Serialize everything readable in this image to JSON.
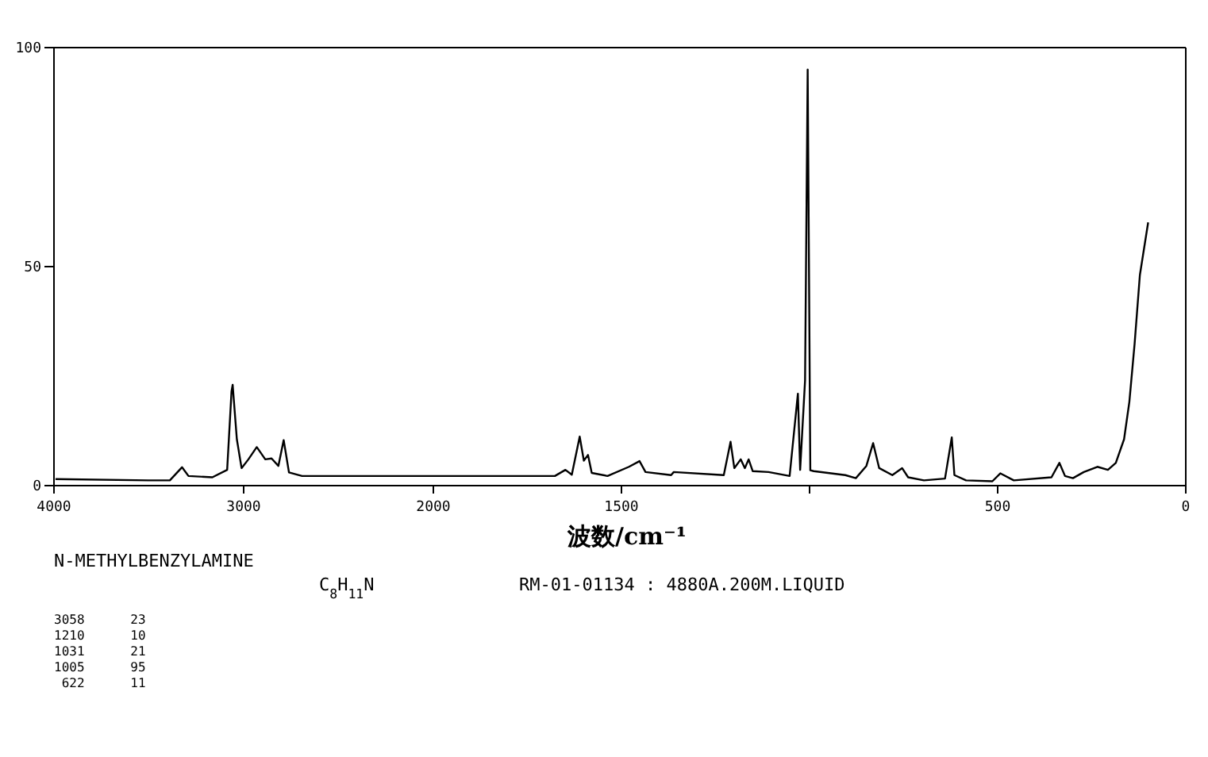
{
  "chart_data": [
    {
      "type": "line",
      "title": "N-METHYLBENZYLAMINE",
      "annotations": [
        "C$_{8}$H$_{11}$N",
        "RM-01-01134 : 4880A.200M.LIQUID",
        "3058      23",
        "1210      10",
        "1031      21",
        "1005      95",
        " 622      11"
      ],
      "xlim": [
        4000,
        2000
      ],
      "xticks": [
        4000,
        3000,
        2000
      ],
      "ylim": [
        0,
        100
      ],
      "yticks": [
        0,
        50,
        100
      ],
      "series": [
        {
          "color": "#000000",
          "x": [
            3992,
            3502,
            3389,
            3325,
            3291,
            3165,
            3087,
            3064,
            3058,
            3036,
            3011,
            2975,
            2931,
            2886,
            2853,
            2817,
            2789,
            2761,
            2692,
            2000
          ],
          "values": [
            1.5,
            1.2,
            1.2,
            4.2,
            2.2,
            1.9,
            3.6,
            21.5,
            23,
            10.6,
            4.0,
            6.0,
            8.8,
            6.0,
            6.2,
            4.5,
            10.4,
            3.0,
            2.2,
            2.2
          ]
        }
      ]
    },
    {
      "type": "line",
      "xlabel": "波数/cm⁻¹",
      "xlim": [
        2000,
        0
      ],
      "xticks": [
        {
          "value": 2000,
          "label": null
        },
        1500,
        {
          "value": 1000,
          "label": null
        },
        500,
        0
      ],
      "ylim": [
        0,
        100
      ],
      "tick_labels": "x",
      "series": [
        {
          "color": "#000000",
          "x": [
            2000,
            1677,
            1649,
            1632,
            1611,
            1600,
            1589,
            1579,
            1537,
            1480,
            1452,
            1436,
            1368,
            1361,
            1228,
            1210,
            1200,
            1183,
            1172,
            1162,
            1151,
            1109,
            1053,
            1031,
            1025,
            1012,
            1005,
            998,
            989,
            905,
            877,
            849,
            831,
            815,
            780,
            754,
            738,
            696,
            640,
            622,
            615,
            584,
            514,
            493,
            457,
            357,
            336,
            321,
            300,
            271,
            235,
            207,
            186,
            164,
            150,
            136,
            122,
            100
          ],
          "values": [
            2.2,
            2.2,
            3.6,
            2.5,
            11.2,
            5.7,
            7.0,
            2.9,
            2.2,
            4.3,
            5.6,
            3.1,
            2.4,
            3.1,
            2.4,
            10,
            4.0,
            6.0,
            4.0,
            6.0,
            3.3,
            3.1,
            2.2,
            21,
            3.6,
            24,
            95,
            3.5,
            3.3,
            2.4,
            1.7,
            4.5,
            9.7,
            4.0,
            2.4,
            4.0,
            1.9,
            1.2,
            1.6,
            11,
            2.4,
            1.2,
            1.0,
            2.8,
            1.2,
            1.9,
            5.2,
            2.2,
            1.7,
            3.1,
            4.3,
            3.6,
            5.2,
            10.6,
            19.1,
            32.4,
            48.1,
            60.1
          ]
        }
      ]
    }
  ]
}
